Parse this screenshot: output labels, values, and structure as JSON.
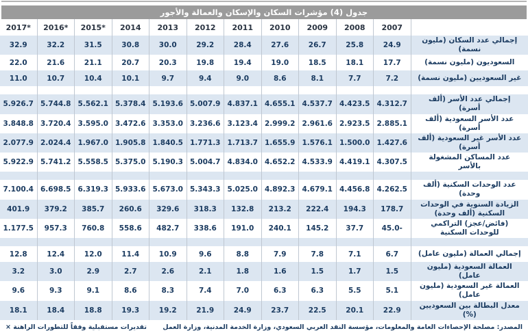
{
  "page": {
    "title": "جدول (4) مؤشرات السكان والإسكان والعمالة والأجور"
  },
  "colors": {
    "title_bar": "#9b9b9b",
    "row_shade": "#dce6f1",
    "text": "#1c3c61",
    "column_line": "#bfc7d1"
  },
  "table": {
    "years": [
      "2017*",
      "2016*",
      "2015*",
      "2014",
      "2013",
      "2012",
      "2011",
      "2010",
      "2009",
      "2008",
      "2007"
    ],
    "sections": [
      {
        "rows": [
          {
            "label": "إجمالي عدد السكان (مليون نسمة)",
            "values": [
              "32.9",
              "32.2",
              "31.5",
              "30.8",
              "30.0",
              "29.2",
              "28.4",
              "27.6",
              "26.7",
              "25.8",
              "24.9"
            ]
          },
          {
            "label": "السعوديون (مليون نسمة)",
            "values": [
              "22.0",
              "21.6",
              "21.1",
              "20.7",
              "20.3",
              "19.8",
              "19.4",
              "19.0",
              "18.5",
              "18.1",
              "17.7"
            ]
          },
          {
            "label": "غير السعوديين (مليون نسمة)",
            "values": [
              "11.0",
              "10.7",
              "10.4",
              "10.1",
              "9.7",
              "9.4",
              "9.0",
              "8.6",
              "8.1",
              "7.7",
              "7.2"
            ]
          }
        ]
      },
      {
        "rows": [
          {
            "label": "إجمالي عدد الأسر (ألف أسرة)",
            "values": [
              "5.926.7",
              "5.744.8",
              "5.562.1",
              "5.378.4",
              "5.193.6",
              "5.007.9",
              "4.837.1",
              "4.655.1",
              "4.537.7",
              "4.423.5",
              "4.312.7"
            ]
          },
          {
            "label": "عدد الأسر السعودية (ألف أسرة)",
            "values": [
              "3.848.8",
              "3.720.4",
              "3.595.0",
              "3.472.6",
              "3.353.0",
              "3.236.6",
              "3.123.4",
              "2.999.2",
              "2.961.6",
              "2.923.5",
              "2.885.1"
            ]
          },
          {
            "label": "عدد الأسر غير السعودية (ألف أسرة)",
            "values": [
              "2.077.9",
              "2.024.4",
              "1.967.0",
              "1.905.8",
              "1.840.5",
              "1.771.3",
              "1.713.7",
              "1.655.9",
              "1.576.1",
              "1.500.0",
              "1.427.6"
            ]
          },
          {
            "label": "عدد المساكن المشغولة بالأسر",
            "values": [
              "5.922.9",
              "5.741.2",
              "5.558.5",
              "5.375.0",
              "5.190.3",
              "5.004.7",
              "4.834.0",
              "4.652.2",
              "4.533.9",
              "4.419.1",
              "4.307.5"
            ]
          }
        ]
      },
      {
        "rows": [
          {
            "label": "عدد الوحدات السكنية (ألف وحدة)",
            "values": [
              "7.100.4",
              "6.698.5",
              "6.319.3",
              "5.933.6",
              "5.673.0",
              "5.343.3",
              "5.025.0",
              "4.892.3",
              "4.679.1",
              "4.456.8",
              "4.262.5"
            ]
          },
          {
            "label": "الزيادة السنوية في الوحدات السكنية (ألف وحدة)",
            "values": [
              "401.9",
              "379.2",
              "385.7",
              "260.6",
              "329.6",
              "318.3",
              "132.8",
              "213.2",
              "222.4",
              "194.3",
              "178.7"
            ]
          },
          {
            "label": "(فائض/عجز) التراكمي للوحدات السكنية",
            "values": [
              "1.177.5",
              "957.3",
              "760.8",
              "558.6",
              "482.7",
              "338.6",
              "191.0",
              "240.1",
              "145.2",
              "37.7",
              "45.0-"
            ]
          }
        ]
      },
      {
        "rows": [
          {
            "label": "إجمالي العمالة (مليون عامل)",
            "values": [
              "12.8",
              "12.4",
              "12.0",
              "11.4",
              "10.9",
              "9.6",
              "8.8",
              "7.9",
              "7.8",
              "7.1",
              "6.7"
            ]
          },
          {
            "label": "العمالة السعودية (مليون عامل)",
            "values": [
              "3.2",
              "3.0",
              "2.9",
              "2.7",
              "2.6",
              "2.1",
              "1.8",
              "1.6",
              "1.5",
              "1.7",
              "1.5"
            ]
          },
          {
            "label": "العمالة غير السعودية (مليون عامل)",
            "values": [
              "9.6",
              "9.3",
              "9.1",
              "8.6",
              "8.3",
              "7.4",
              "7.0",
              "6.3",
              "6.3",
              "5.5",
              "5.1"
            ]
          },
          {
            "label": "معدل البطالة بين السعوديين (%)",
            "values": [
              "18.1",
              "18.4",
              "18.8",
              "19.3",
              "19.2",
              "21.9",
              "24.9",
              "23.7",
              "22.5",
              "20.1",
              "22.9"
            ]
          }
        ]
      }
    ]
  },
  "footer": {
    "source": "المصدر: مصلحة الإحصاءات العامة والمعلومات، مؤسسة النقد العربي السعودي، وزارة الخدمة المدنية، وزارة العمل",
    "note": "× تقديرات مستقبلية وفقاً للتطورات الراهنة"
  }
}
